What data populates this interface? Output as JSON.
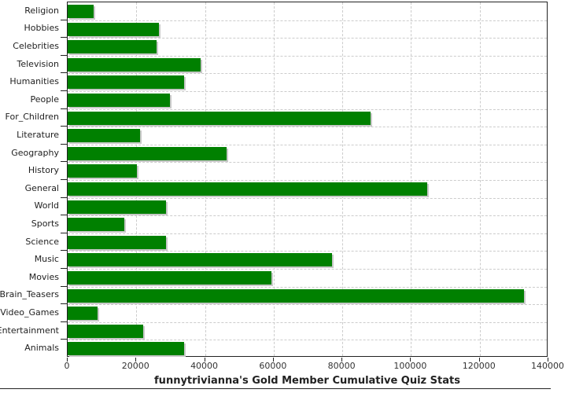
{
  "chart_data": {
    "type": "bar",
    "orientation": "horizontal",
    "title": "funnytrivianna's Gold Member Cumulative Quiz Stats",
    "categories": [
      "Religion",
      "Hobbies",
      "Celebrities",
      "Television",
      "Humanities",
      "People",
      "For_Children",
      "Literature",
      "Geography",
      "History",
      "General",
      "World",
      "Sports",
      "Science",
      "Music",
      "Movies",
      "Brain_Teasers",
      "Video_Games",
      "Entertainment",
      "Animals"
    ],
    "values": [
      7500,
      26500,
      25800,
      38700,
      33800,
      29700,
      88200,
      21000,
      46200,
      20100,
      104600,
      28600,
      16500,
      28700,
      77000,
      59300,
      133000,
      8600,
      22100,
      33800
    ],
    "xlabel": "",
    "ylabel": "",
    "xlim": [
      0,
      140000
    ],
    "x_ticks": [
      0,
      20000,
      40000,
      60000,
      80000,
      100000,
      120000,
      140000
    ],
    "grid": "dashed",
    "legend": "none",
    "bar_color": "#008000",
    "bar_shadow_color": "#c9c9c9",
    "grid_color": "#cccccc",
    "axis_color": "#222222",
    "background_color": "#ffffff"
  }
}
